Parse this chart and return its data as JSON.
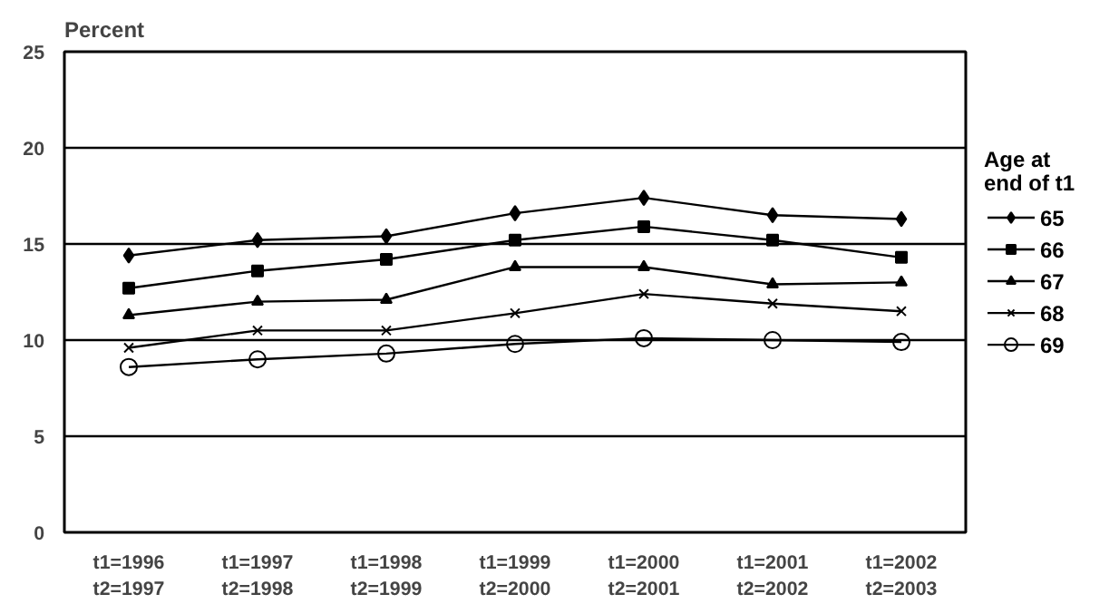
{
  "chart_data": {
    "type": "line",
    "ylabel": "Percent",
    "legend_title": "Age at\nend of t1",
    "categories": [
      "t1=1996\nt2=1997",
      "t1=1997\nt2=1998",
      "t1=1998\nt2=1999",
      "t1=1999\nt2=2000",
      "t1=2000\nt2=2001",
      "t1=2001\nt2=2002",
      "t1=2002\nt2=2003"
    ],
    "series": [
      {
        "name": "65",
        "color": "#000000",
        "marker": "diamond",
        "values": [
          14.4,
          15.2,
          15.4,
          16.6,
          17.4,
          16.5,
          16.3
        ]
      },
      {
        "name": "66",
        "color": "#000000",
        "marker": "square",
        "values": [
          12.7,
          13.6,
          14.2,
          15.2,
          15.9,
          15.2,
          14.3
        ]
      },
      {
        "name": "67",
        "color": "#000000",
        "marker": "triangle",
        "values": [
          11.3,
          12.0,
          12.1,
          13.8,
          13.8,
          12.9,
          13.0
        ]
      },
      {
        "name": "68",
        "color": "#000000",
        "marker": "cross",
        "values": [
          9.6,
          10.5,
          10.5,
          11.4,
          12.4,
          11.9,
          11.5
        ]
      },
      {
        "name": "69",
        "color": "#000000",
        "marker": "circle",
        "values": [
          8.6,
          9.0,
          9.3,
          9.8,
          10.1,
          10.0,
          9.9
        ]
      }
    ],
    "ylim": [
      0,
      25
    ],
    "yticks": [
      0,
      5,
      10,
      15,
      20,
      25
    ],
    "grid": "y",
    "legend": "right"
  }
}
